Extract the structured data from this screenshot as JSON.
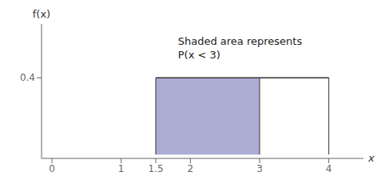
{
  "chart_data": {
    "type": "area",
    "xlabel": "x",
    "ylabel": "f(x)",
    "x": [
      1.5,
      3,
      4
    ],
    "values": [
      0.4,
      0.4,
      0.4
    ],
    "shaded_x": [
      1.5,
      3
    ],
    "color": "#8080bb",
    "annotations": [
      {
        "text": "Shaded area represents\nP(x < 3)",
        "x": 1.82,
        "y": 0.62
      }
    ],
    "xlim": [
      -0.15,
      4.5
    ],
    "ylim": [
      -0.02,
      0.68
    ],
    "xticks": [
      0,
      1,
      1.5,
      2,
      3,
      4
    ],
    "yticks": [
      0.4
    ],
    "grid": false
  }
}
